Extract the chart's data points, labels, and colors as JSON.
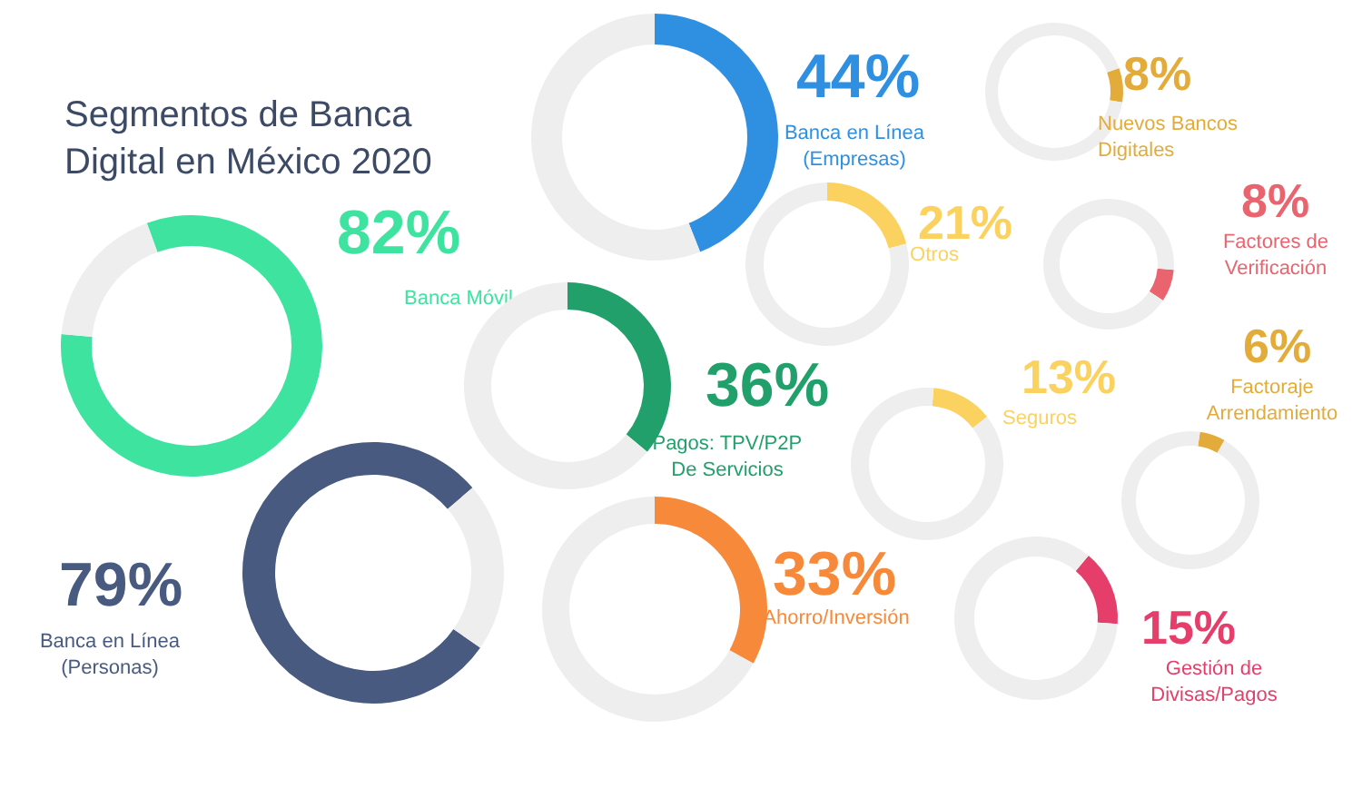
{
  "chart_data": [
    {
      "type": "donut",
      "title": "Segmentos de Banca\nDigital en México 2020",
      "categories": [
        "Banca Móvil",
        null
      ],
      "values": [
        82,
        18
      ],
      "colors": [
        "#3ee3a0",
        "#eeeeee"
      ],
      "value_labels": [
        "82%",
        null
      ]
    },
    {
      "type": "donut",
      "categories": [
        "Banca en Línea\n(Empresas)",
        null
      ],
      "values": [
        44,
        56
      ],
      "colors": [
        "#2f8fe0",
        "#eeeeee"
      ],
      "value_labels": [
        "44%",
        null
      ]
    },
    {
      "type": "donut",
      "categories": [
        "Nuevos Bancos\nDigitales",
        null
      ],
      "values": [
        8,
        92
      ],
      "colors": [
        "#e3ac3a",
        "#eeeeee"
      ],
      "value_labels": [
        "8%",
        null
      ]
    },
    {
      "type": "donut",
      "categories": [
        "Otros",
        null
      ],
      "values": [
        21,
        79
      ],
      "colors": [
        "#fbd160",
        "#eeeeee"
      ],
      "value_labels": [
        "21%",
        null
      ]
    },
    {
      "type": "donut",
      "categories": [
        "Factores de\nVerificación",
        null
      ],
      "values": [
        8,
        92
      ],
      "colors": [
        "#e9646e",
        "#eeeeee"
      ],
      "value_labels": [
        "8%",
        null
      ]
    },
    {
      "type": "donut",
      "categories": [
        "Pagos: TPV/P2P\nDe Servicios",
        null
      ],
      "values": [
        36,
        64
      ],
      "colors": [
        "#22a06b",
        "#eeeeee"
      ],
      "value_labels": [
        "36%",
        null
      ]
    },
    {
      "type": "donut",
      "categories": [
        "Seguros",
        null
      ],
      "values": [
        13,
        87
      ],
      "colors": [
        "#fbd160",
        "#eeeeee"
      ],
      "value_labels": [
        "13%",
        null
      ]
    },
    {
      "type": "donut",
      "categories": [
        "Factoraje\nArrendamiento",
        null
      ],
      "values": [
        6,
        94
      ],
      "colors": [
        "#e3ac3a",
        "#eeeeee"
      ],
      "value_labels": [
        "6%",
        null
      ]
    },
    {
      "type": "donut",
      "categories": [
        "Banca en Línea\n(Personas)",
        null
      ],
      "values": [
        79,
        21
      ],
      "colors": [
        "#485a80",
        "#eeeeee"
      ],
      "value_labels": [
        "79%",
        null
      ]
    },
    {
      "type": "donut",
      "categories": [
        "Ahorro/Inversión",
        null
      ],
      "values": [
        33,
        67
      ],
      "colors": [
        "#f6893a",
        "#eeeeee"
      ],
      "value_labels": [
        "33%",
        null
      ]
    },
    {
      "type": "donut",
      "categories": [
        "Gestión de\nDivisas/Pagos",
        null
      ],
      "values": [
        15,
        85
      ],
      "colors": [
        "#e53e6b",
        "#eeeeee"
      ],
      "value_labels": [
        "15%",
        null
      ]
    }
  ]
}
